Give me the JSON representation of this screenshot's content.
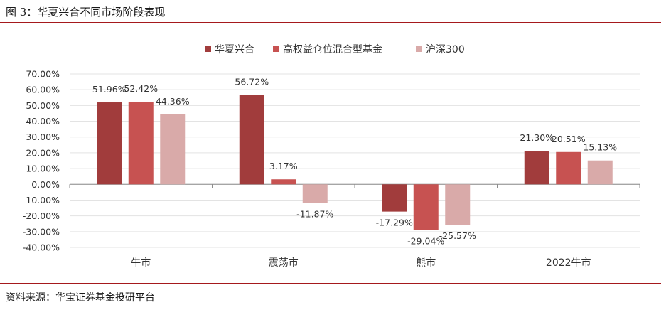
{
  "figure": {
    "title": "图 3：华夏兴合不同市场阶段表现",
    "source": "资料来源：华宝证券基金投研平台"
  },
  "chart_data": {
    "type": "bar",
    "title": "",
    "xlabel": "",
    "ylabel": "",
    "categories": [
      "牛市",
      "震荡市",
      "熊市",
      "2022牛市"
    ],
    "series": [
      {
        "name": "华夏兴合",
        "color": "#a13c3c",
        "values": [
          51.96,
          56.72,
          -17.29,
          21.3
        ],
        "labels": [
          "51.96%",
          "56.72%",
          "-17.29%",
          "21.30%"
        ]
      },
      {
        "name": "高权益仓位混合型基金",
        "color": "#c75251",
        "values": [
          52.42,
          3.17,
          -29.04,
          20.51
        ],
        "labels": [
          "52.42%",
          "3.17%",
          "-29.04%",
          "20.51%"
        ]
      },
      {
        "name": "沪深300",
        "color": "#d9aaa9",
        "values": [
          44.36,
          -11.87,
          -25.57,
          15.13
        ],
        "labels": [
          "44.36%",
          "-11.87%",
          "-25.57%",
          "15.13%"
        ]
      }
    ],
    "ylim": [
      -40,
      70
    ],
    "yticks": [
      70,
      60,
      50,
      40,
      30,
      20,
      10,
      0,
      -10,
      -20,
      -30,
      -40
    ],
    "ytick_labels": [
      "70.00%",
      "60.00%",
      "50.00%",
      "40.00%",
      "30.00%",
      "20.00%",
      "10.00%",
      "0.00%",
      "-10.00%",
      "-20.00%",
      "-30.00%",
      "-40.00%"
    ],
    "grid": true,
    "legend": "top-center"
  }
}
